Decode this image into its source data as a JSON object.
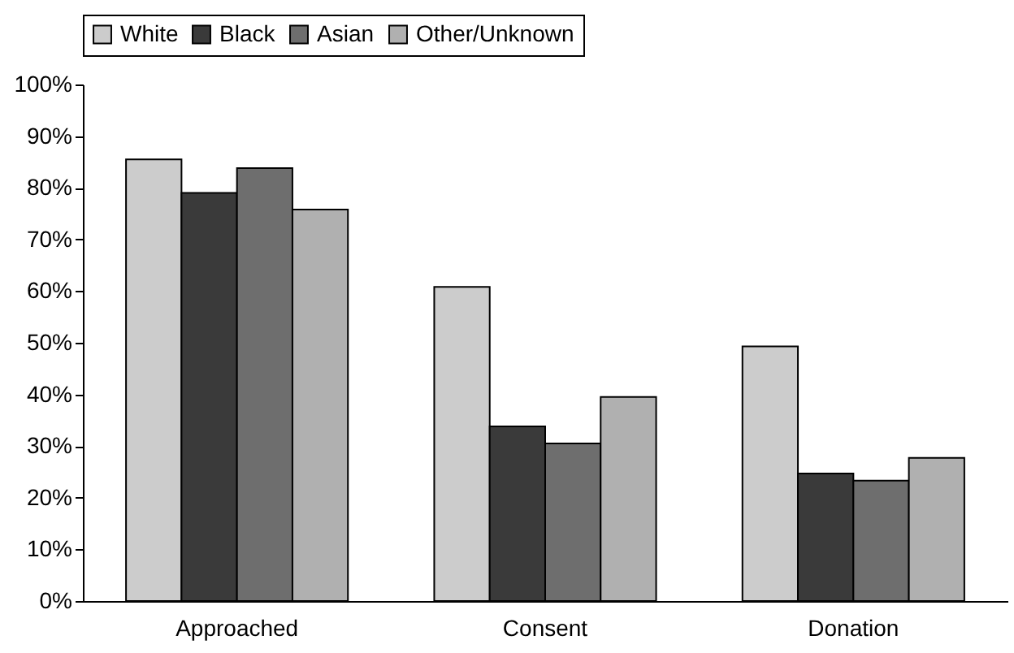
{
  "chart_data": {
    "type": "bar",
    "categories": [
      "Approached",
      "Consent",
      "Donation"
    ],
    "series": [
      {
        "name": "White",
        "color": "#cccccc",
        "values": [
          85.5,
          60.8,
          49.3
        ]
      },
      {
        "name": "Black",
        "color": "#3a3a3a",
        "values": [
          79,
          33.8,
          24.7
        ]
      },
      {
        "name": "Asian",
        "color": "#6e6e6e",
        "values": [
          83.8,
          30.5,
          23.3
        ]
      },
      {
        "name": "Other/Unknown",
        "color": "#b0b0b0",
        "values": [
          75.8,
          39.5,
          27.7
        ]
      }
    ],
    "ylim": [
      0,
      100
    ],
    "yticks": [
      {
        "value": 0,
        "label": "0%"
      },
      {
        "value": 10,
        "label": "10%"
      },
      {
        "value": 20,
        "label": "20%"
      },
      {
        "value": 30,
        "label": "30%"
      },
      {
        "value": 40,
        "label": "40%"
      },
      {
        "value": 50,
        "label": "50%"
      },
      {
        "value": 60,
        "label": "60%"
      },
      {
        "value": 70,
        "label": "70%"
      },
      {
        "value": 80,
        "label": "80%"
      },
      {
        "value": 90,
        "label": "90%"
      },
      {
        "value": 100,
        "label": "100%"
      }
    ],
    "grid": false,
    "legend": "top"
  }
}
